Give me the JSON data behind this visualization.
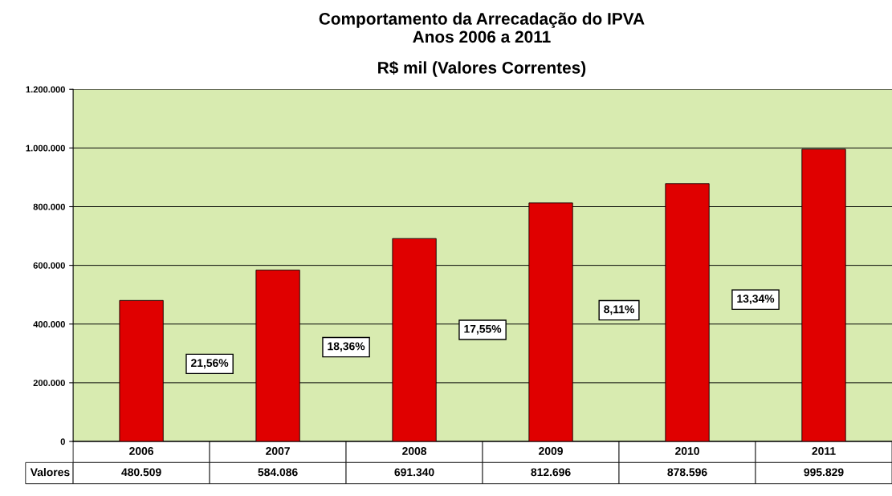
{
  "chart_data": {
    "type": "bar",
    "title": "Comportamento da Arrecadação do IPVA\nAnos 2006 a 2011",
    "subtitle": "R$ mil (Valores Correntes)",
    "categories": [
      "2006",
      "2007",
      "2008",
      "2009",
      "2010",
      "2011"
    ],
    "series": [
      {
        "name": "Valores",
        "color": "#e00000",
        "values": [
          480509,
          584086,
          691340,
          812696,
          878596,
          995829
        ],
        "value_labels": [
          "480.509",
          "584.086",
          "691.340",
          "812.696",
          "878.596",
          "995.829"
        ]
      }
    ],
    "ylim": [
      0,
      1200000
    ],
    "yticks": [
      {
        "value": 0,
        "label": "0"
      },
      {
        "value": 200000,
        "label": "200.000"
      },
      {
        "value": 400000,
        "label": "400.000"
      },
      {
        "value": 600000,
        "label": "600.000"
      },
      {
        "value": 800000,
        "label": "800.000"
      },
      {
        "value": 1000000,
        "label": "1.000.000"
      },
      {
        "value": 1200000,
        "label": "1.200.000"
      }
    ],
    "grid": "y",
    "legend": false,
    "annotations": [
      "21,56%",
      "18,36%",
      "17,55%",
      "8,11%",
      "13,34%"
    ]
  }
}
